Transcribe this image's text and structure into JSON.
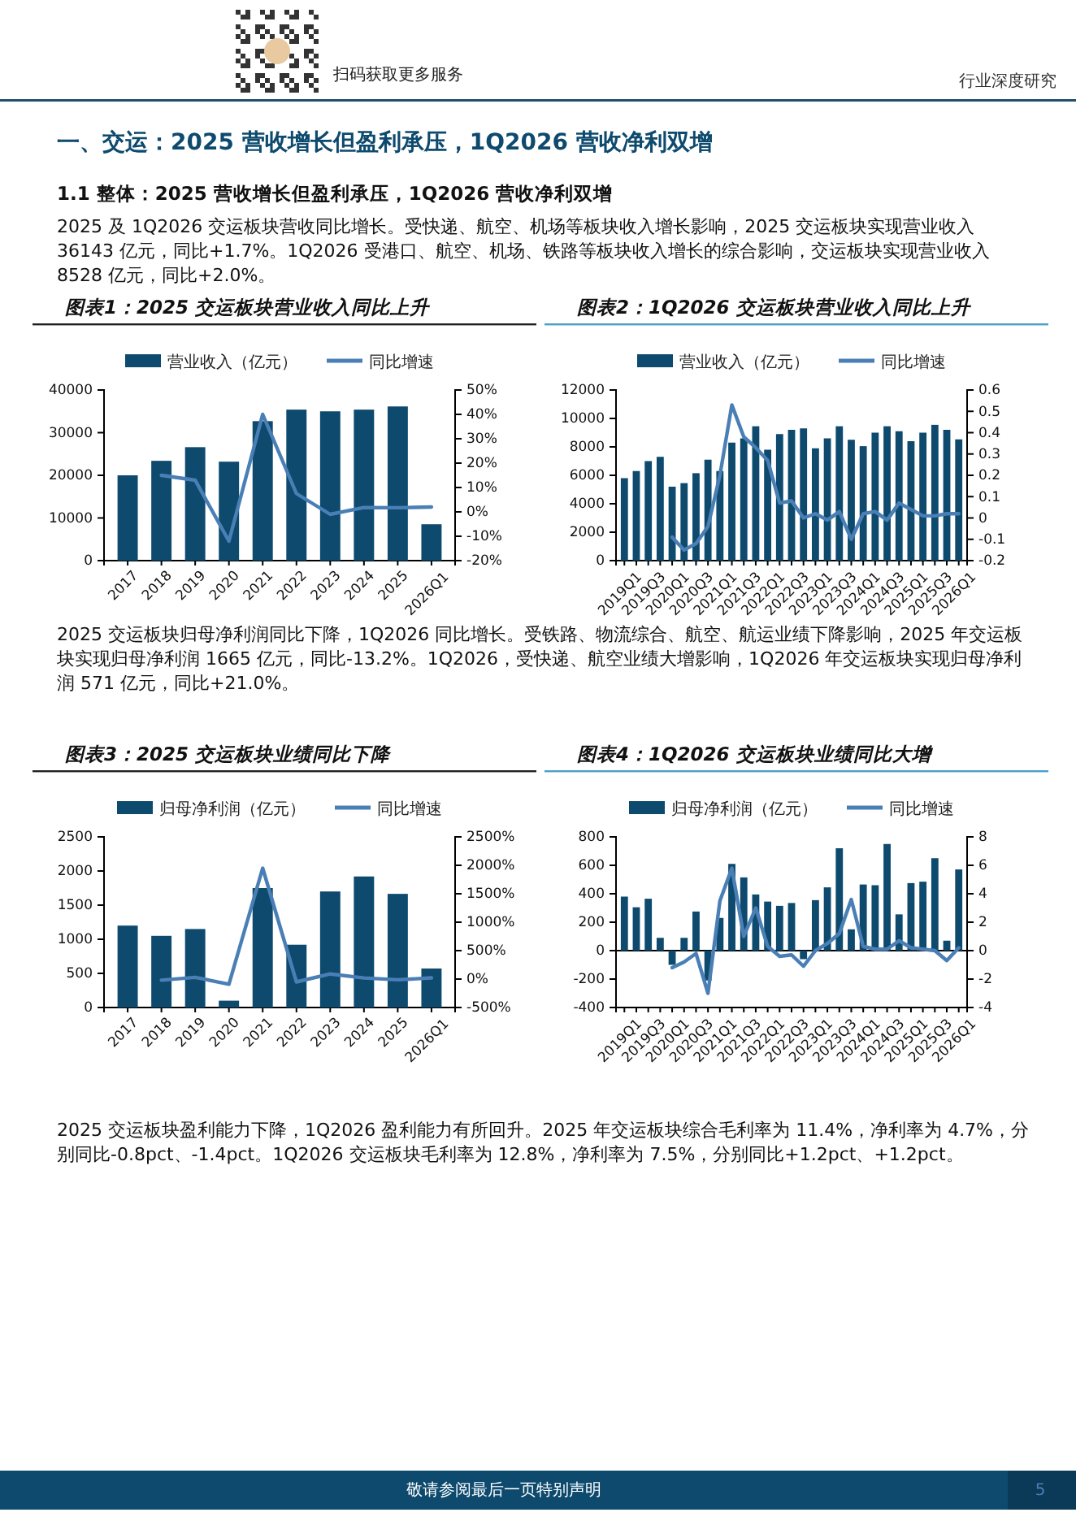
{
  "chart_data": [
    {
      "type": "other",
      "annotations": [
        "行业深度研究",
        "扫码获取更多服务",
        "一、交运：2025 营收增长但盈利承压，1Q2026 营收净利双增",
        "1.1 整体：2025 营收增长但盈利承压，1Q2026 营收净利双增",
        "2025 及 1Q2026 交运板块营收同比增长。受快递、航空、机场等板块收入增长影响，2025 交运板块实现营业收入 36143 亿元，同比+1.7%。1Q2026 受港口、航空、机场、铁路等板块收入增长的综合影响，交运板块实现营业收入 8528 亿元，同比+2.0%。",
        "2025 交运板块归母净利润同比下降，1Q2026 同比增长。受铁路、物流综合、航空、航运业绩下降影响，2025 年交运板块实现归母净利润 1665 亿元，同比-13.2%。1Q2026，受快递、航空业绩大增影响，1Q2026 年交运板块实现归母净利润 571 亿元，同比+21.0%。",
        "2025 交运板块盈利能力下降，1Q2026 盈利能力有所回升。2025 年交运板块综合毛利率为 11.4%，净利率为 4.7%，分别同比-0.8pct、-1.4pct。1Q2026 交运板块毛利率为 12.8%，净利率为 7.5%，分别同比+1.2pct、+1.2pct。",
        "敬请参阅最后一页特别声明",
        "5"
      ]
    },
    {
      "type": "bar",
      "title": "图表1：2025 交运板块营业收入同比上升",
      "legend": "top",
      "categories": [
        "2017",
        "2018",
        "2019",
        "2020",
        "2021",
        "2022",
        "2023",
        "2024",
        "2025",
        "2026Q1"
      ],
      "series": [
        {
          "name": "营业收入（亿元）",
          "type": "bar",
          "color": "#0d4a6e",
          "values": [
            20000,
            23400,
            26600,
            23200,
            32700,
            35400,
            35000,
            35400,
            36143,
            8528
          ]
        },
        {
          "name": "同比增速",
          "type": "line",
          "axis": "y2",
          "color": "#4a7fb5",
          "values": [
            null,
            15,
            13,
            -12,
            40,
            7.5,
            -1,
            1.8,
            1.7,
            2.0
          ]
        }
      ],
      "ylim": [
        0,
        40000
      ],
      "yticks": [
        0,
        10000,
        20000,
        30000,
        40000
      ],
      "y2lim": [
        -20,
        50
      ],
      "y2ticks": [
        {
          "value": -20,
          "label": "-20%"
        },
        {
          "value": -10,
          "label": "-10%"
        },
        {
          "value": 0,
          "label": "0%"
        },
        {
          "value": 10,
          "label": "10%"
        },
        {
          "value": 20,
          "label": "20%"
        },
        {
          "value": 30,
          "label": "30%"
        },
        {
          "value": 40,
          "label": "40%"
        },
        {
          "value": 50,
          "label": "50%"
        }
      ]
    },
    {
      "type": "bar",
      "title": "图表2：1Q2026 交运板块营业收入同比上升",
      "legend": "top",
      "categories": [
        "2019Q1",
        null,
        "2019Q3",
        null,
        "2020Q1",
        null,
        "2020Q3",
        null,
        "2021Q1",
        null,
        "2021Q3",
        null,
        "2022Q1",
        null,
        "2022Q3",
        null,
        "2023Q1",
        null,
        "2023Q3",
        null,
        "2024Q1",
        null,
        "2024Q3",
        null,
        "2025Q1",
        null,
        "2025Q3",
        null,
        "2026Q1"
      ],
      "series": [
        {
          "name": "营业收入（亿元）",
          "type": "bar",
          "color": "#0d4a6e",
          "values": [
            5800,
            6300,
            7000,
            7300,
            5200,
            5450,
            6150,
            7100,
            6300,
            8300,
            8600,
            9450,
            7800,
            8900,
            9200,
            9300,
            7900,
            8600,
            9450,
            8500,
            8050,
            9000,
            9450,
            9100,
            8400,
            9000,
            9550,
            9200,
            8528
          ]
        },
        {
          "name": "同比增速",
          "type": "line",
          "axis": "y2",
          "color": "#4a7fb5",
          "values": [
            null,
            null,
            null,
            null,
            -0.09,
            -0.15,
            -0.12,
            -0.04,
            0.2,
            0.53,
            0.38,
            0.33,
            0.27,
            0.07,
            0.08,
            0.0,
            0.02,
            -0.01,
            0.03,
            -0.1,
            0.02,
            0.03,
            -0.01,
            0.07,
            0.04,
            0.01,
            0.01,
            0.02,
            0.02
          ]
        }
      ],
      "ylim": [
        0,
        12000
      ],
      "yticks": [
        0,
        2000,
        4000,
        6000,
        8000,
        10000,
        12000
      ],
      "y2lim": [
        -0.2,
        0.6
      ],
      "y2ticks": [
        -0.2,
        -0.1,
        0,
        0.1,
        0.2,
        0.3,
        0.4,
        0.5,
        0.6
      ]
    },
    {
      "type": "bar",
      "title": "图表3：2025 交运板块业绩同比下降",
      "legend": "top",
      "categories": [
        "2017",
        "2018",
        "2019",
        "2020",
        "2021",
        "2022",
        "2023",
        "2024",
        "2025",
        "2026Q1"
      ],
      "series": [
        {
          "name": "归母净利润（亿元）",
          "type": "bar",
          "color": "#0d4a6e",
          "values": [
            1200,
            1050,
            1150,
            100,
            1750,
            920,
            1700,
            1920,
            1665,
            571
          ]
        },
        {
          "name": "同比增速",
          "type": "line",
          "axis": "y2",
          "color": "#4a7fb5",
          "values": [
            null,
            -20,
            30,
            -90,
            1950,
            -50,
            90,
            20,
            -13.2,
            21.0
          ]
        }
      ],
      "ylim": [
        0,
        2500
      ],
      "yticks": [
        0,
        500,
        1000,
        1500,
        2000,
        2500
      ],
      "y2lim": [
        -500,
        2500
      ],
      "y2ticks": [
        {
          "value": -500,
          "label": "-500%"
        },
        {
          "value": 0,
          "label": "0%"
        },
        {
          "value": 500,
          "label": "500%"
        },
        {
          "value": 1000,
          "label": "1000%"
        },
        {
          "value": 1500,
          "label": "1500%"
        },
        {
          "value": 2000,
          "label": "2000%"
        },
        {
          "value": 2500,
          "label": "2500%"
        }
      ]
    },
    {
      "type": "bar",
      "title": "图表4：1Q2026 交运板块业绩同比大增",
      "legend": "top",
      "categories": [
        "2019Q1",
        null,
        "2019Q3",
        null,
        "2020Q1",
        null,
        "2020Q3",
        null,
        "2021Q1",
        null,
        "2021Q3",
        null,
        "2022Q1",
        null,
        "2022Q3",
        null,
        "2023Q1",
        null,
        "2023Q3",
        null,
        "2024Q1",
        null,
        "2024Q3",
        null,
        "2025Q1",
        null,
        "2025Q3",
        null,
        "2026Q1"
      ],
      "series": [
        {
          "name": "归母净利润（亿元）",
          "type": "bar",
          "color": "#0d4a6e",
          "values": [
            380,
            305,
            365,
            90,
            -100,
            90,
            275,
            -210,
            230,
            610,
            515,
            395,
            345,
            315,
            335,
            -60,
            355,
            445,
            720,
            150,
            465,
            460,
            750,
            255,
            475,
            485,
            650,
            70,
            571
          ]
        },
        {
          "name": "同比增速",
          "type": "line",
          "axis": "y2",
          "color": "#4a7fb5",
          "values": [
            null,
            null,
            null,
            null,
            -1.2,
            -0.8,
            -0.2,
            -3.0,
            3.5,
            5.8,
            1.0,
            3.0,
            0.3,
            -0.4,
            -0.3,
            -1.1,
            0.0,
            0.5,
            1.2,
            3.6,
            0.3,
            0.1,
            0.1,
            0.7,
            0.2,
            0.1,
            0.0,
            -0.7,
            0.2
          ]
        }
      ],
      "ylim": [
        -400,
        800
      ],
      "yticks": [
        -400,
        -200,
        0,
        200,
        400,
        600,
        800
      ],
      "y2lim": [
        -4,
        8
      ],
      "y2ticks": [
        -4,
        -2,
        0,
        2,
        4,
        6,
        8
      ]
    }
  ]
}
